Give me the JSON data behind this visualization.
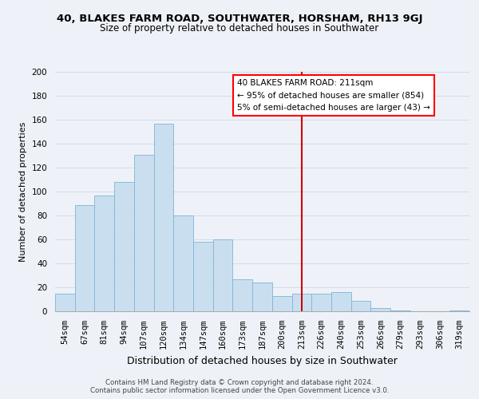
{
  "title": "40, BLAKES FARM ROAD, SOUTHWATER, HORSHAM, RH13 9GJ",
  "subtitle": "Size of property relative to detached houses in Southwater",
  "xlabel": "Distribution of detached houses by size in Southwater",
  "ylabel": "Number of detached properties",
  "footer_line1": "Contains HM Land Registry data © Crown copyright and database right 2024.",
  "footer_line2": "Contains public sector information licensed under the Open Government Licence v3.0.",
  "bar_labels": [
    "54sqm",
    "67sqm",
    "81sqm",
    "94sqm",
    "107sqm",
    "120sqm",
    "134sqm",
    "147sqm",
    "160sqm",
    "173sqm",
    "187sqm",
    "200sqm",
    "213sqm",
    "226sqm",
    "240sqm",
    "253sqm",
    "266sqm",
    "279sqm",
    "293sqm",
    "306sqm",
    "319sqm"
  ],
  "bar_values": [
    15,
    89,
    97,
    108,
    131,
    157,
    80,
    58,
    60,
    27,
    24,
    13,
    15,
    15,
    16,
    9,
    3,
    1,
    0,
    0,
    1
  ],
  "bar_color": "#c9dff0",
  "bar_edge_color": "#7fb4d4",
  "vline_x_index": 12,
  "vline_color": "#cc0000",
  "ylim": [
    0,
    200
  ],
  "yticks": [
    0,
    20,
    40,
    60,
    80,
    100,
    120,
    140,
    160,
    180,
    200
  ],
  "annotation_title": "40 BLAKES FARM ROAD: 211sqm",
  "annotation_line1": "← 95% of detached houses are smaller (854)",
  "annotation_line2": "5% of semi-detached houses are larger (43) →",
  "grid_color": "#d0dce8",
  "background_color": "#eef2f8",
  "title_fontsize": 9.5,
  "subtitle_fontsize": 8.5,
  "ylabel_fontsize": 8,
  "xlabel_fontsize": 9,
  "tick_fontsize": 7.5,
  "footer_fontsize": 6.2
}
